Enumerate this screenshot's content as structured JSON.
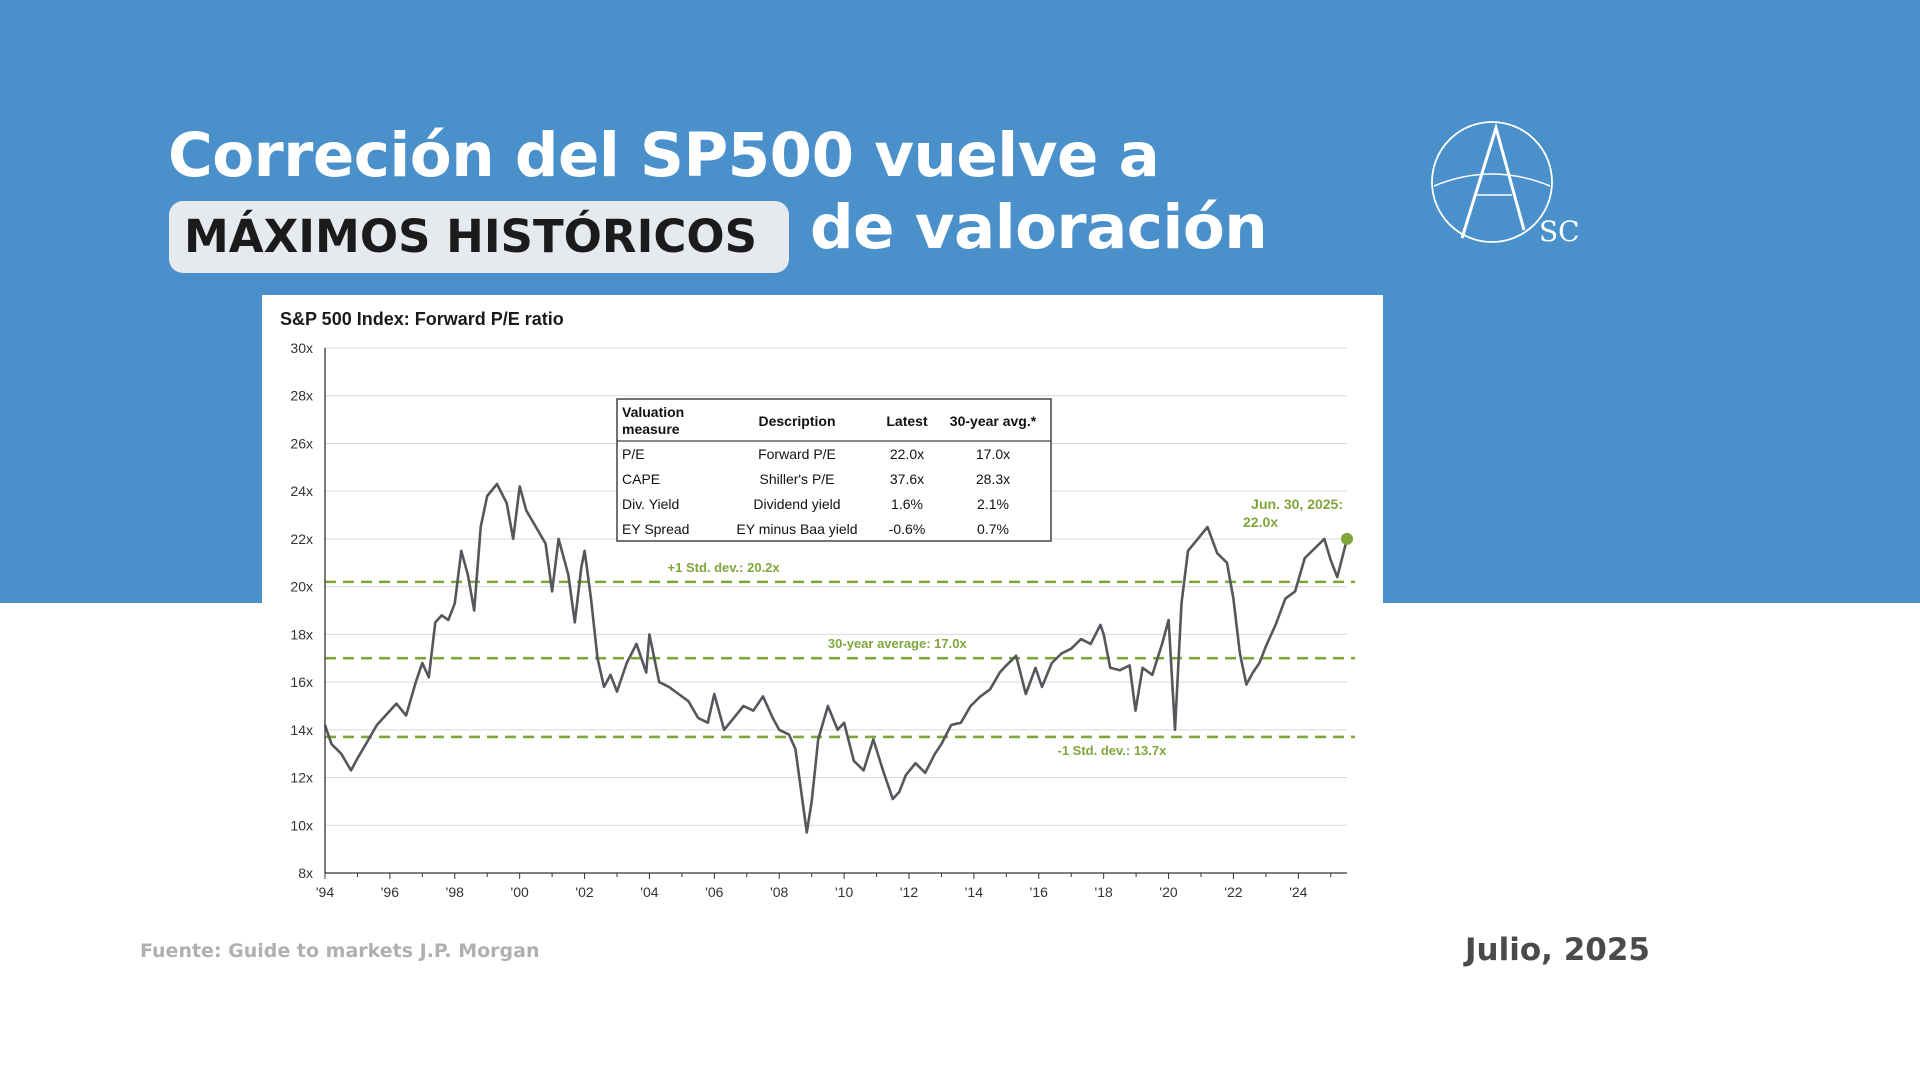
{
  "slide": {
    "title_line1": "Correción del SP500 vuelve a",
    "title_highlight": "MÁXIMOS HISTÓRICOS",
    "title_line2_rest": "de valoración",
    "logo_text": "SC",
    "source": "Fuente: Guide to markets J.P. Morgan",
    "date": "Julio, 2025",
    "colors": {
      "background_band": "#4a91cc",
      "highlight_pill": "#e6e9ed",
      "series_line": "#55575c",
      "reference_lines": "#7fa63a"
    }
  },
  "chart_data": {
    "type": "line",
    "title": "S&P 500 Index: Forward P/E ratio",
    "xlabel": "",
    "ylabel": "",
    "xlim": [
      1994,
      2025.5
    ],
    "ylim": [
      8,
      30
    ],
    "x_ticks": [
      "'94",
      "'96",
      "'98",
      "'00",
      "'02",
      "'04",
      "'06",
      "'08",
      "'10",
      "'12",
      "'14",
      "'16",
      "'18",
      "'20",
      "'22",
      "'24"
    ],
    "y_ticks": [
      "8x",
      "10x",
      "12x",
      "14x",
      "16x",
      "18x",
      "20x",
      "22x",
      "24x",
      "26x",
      "28x",
      "30x"
    ],
    "grid": "horizontal",
    "series": [
      {
        "x": [
          1994.0,
          1994.2,
          1994.5,
          1994.8,
          1995.0,
          1995.3,
          1995.6,
          1996.0,
          1996.2,
          1996.5,
          1996.8,
          1997.0,
          1997.2,
          1997.4,
          1997.6,
          1997.8,
          1998.0,
          1998.2,
          1998.4,
          1998.6,
          1998.8,
          1999.0,
          1999.3,
          1999.6,
          1999.8,
          2000.0,
          2000.2,
          2000.5,
          2000.8,
          2001.0,
          2001.2,
          2001.5,
          2001.7,
          2001.9,
          2002.0,
          2002.2,
          2002.4,
          2002.6,
          2002.8,
          2003.0,
          2003.3,
          2003.6,
          2003.9,
          2004.0,
          2004.3,
          2004.6,
          2004.9,
          2005.2,
          2005.5,
          2005.8,
          2006.0,
          2006.3,
          2006.6,
          2006.9,
          2007.2,
          2007.5,
          2007.8,
          2008.0,
          2008.3,
          2008.5,
          2008.7,
          2008.85,
          2009.0,
          2009.2,
          2009.5,
          2009.8,
          2010.0,
          2010.3,
          2010.6,
          2010.9,
          2011.2,
          2011.5,
          2011.7,
          2011.9,
          2012.2,
          2012.5,
          2012.8,
          2013.0,
          2013.3,
          2013.6,
          2013.9,
          2014.2,
          2014.5,
          2014.8,
          2015.0,
          2015.3,
          2015.6,
          2015.9,
          2016.1,
          2016.4,
          2016.7,
          2017.0,
          2017.3,
          2017.6,
          2017.9,
          2018.0,
          2018.2,
          2018.5,
          2018.8,
          2018.98,
          2019.2,
          2019.5,
          2019.8,
          2020.0,
          2020.2,
          2020.4,
          2020.6,
          2020.9,
          2021.2,
          2021.5,
          2021.8,
          2022.0,
          2022.2,
          2022.4,
          2022.6,
          2022.8,
          2023.0,
          2023.3,
          2023.6,
          2023.9,
          2024.2,
          2024.5,
          2024.8,
          2025.0,
          2025.2,
          2025.5
        ],
        "y": [
          14.2,
          13.4,
          13.0,
          12.3,
          12.8,
          13.5,
          14.2,
          14.8,
          15.1,
          14.6,
          16.0,
          16.8,
          16.2,
          18.5,
          18.8,
          18.6,
          19.3,
          21.5,
          20.5,
          19.0,
          22.5,
          23.8,
          24.3,
          23.5,
          22.0,
          24.2,
          23.2,
          22.5,
          21.8,
          19.8,
          22.0,
          20.5,
          18.5,
          20.8,
          21.5,
          19.5,
          17.0,
          15.8,
          16.3,
          15.6,
          16.8,
          17.6,
          16.4,
          18.0,
          16.0,
          15.8,
          15.5,
          15.2,
          14.5,
          14.3,
          15.5,
          14.0,
          14.5,
          15.0,
          14.8,
          15.4,
          14.5,
          14.0,
          13.8,
          13.2,
          11.2,
          9.7,
          11.0,
          13.6,
          15.0,
          14.0,
          14.3,
          12.7,
          12.3,
          13.6,
          12.3,
          11.1,
          11.4,
          12.1,
          12.6,
          12.2,
          13.0,
          13.4,
          14.2,
          14.3,
          15.0,
          15.4,
          15.7,
          16.4,
          16.7,
          17.1,
          15.5,
          16.6,
          15.8,
          16.8,
          17.2,
          17.4,
          17.8,
          17.6,
          18.4,
          18.0,
          16.6,
          16.5,
          16.7,
          14.8,
          16.6,
          16.3,
          17.6,
          18.6,
          14.0,
          19.3,
          21.5,
          22.0,
          22.5,
          21.4,
          21.0,
          19.5,
          17.2,
          15.9,
          16.4,
          16.8,
          17.5,
          18.4,
          19.5,
          19.8,
          21.2,
          21.6,
          22.0,
          21.1,
          20.4,
          22.0
        ]
      }
    ],
    "reference_lines": [
      {
        "label": "+1 Std. dev.: 20.2x",
        "value": 20.2
      },
      {
        "label": "30-year average: 17.0x",
        "value": 17.0
      },
      {
        "label": "-1 Std. dev.: 13.7x",
        "value": 13.7
      }
    ],
    "annotation": {
      "line1": "Jun. 30, 2025:",
      "line2": "22.0x",
      "x": 2025.5,
      "y": 22.0
    },
    "table": {
      "headers": [
        "Valuation measure",
        "Description",
        "Latest",
        "30-year avg.*"
      ],
      "rows": [
        [
          "P/E",
          "Forward P/E",
          "22.0x",
          "17.0x"
        ],
        [
          "CAPE",
          "Shiller's P/E",
          "37.6x",
          "28.3x"
        ],
        [
          "Div. Yield",
          "Dividend yield",
          "1.6%",
          "2.1%"
        ],
        [
          "EY Spread",
          "EY minus Baa yield",
          "-0.6%",
          "0.7%"
        ]
      ]
    }
  }
}
